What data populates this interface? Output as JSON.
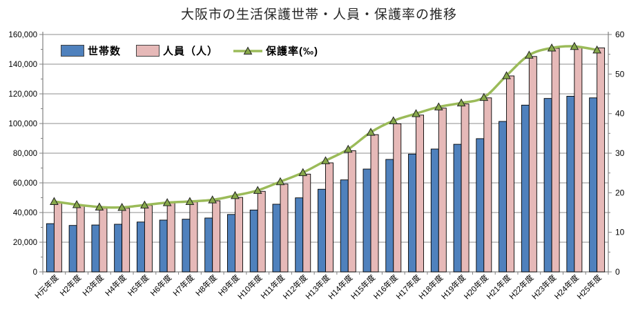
{
  "chart_data": {
    "type": "bar",
    "title": "大阪市の生活保護世帯・人員・保護率の推移",
    "xlabel": "",
    "ylabel_left": "",
    "ylabel_right": "",
    "grid": true,
    "legend_position": "top-left-inside",
    "categories": [
      "H元年度",
      "H2年度",
      "H3年度",
      "H4年度",
      "H5年度",
      "H6年度",
      "H7年度",
      "H8年度",
      "H9年度",
      "H10年度",
      "H11年度",
      "H12年度",
      "H13年度",
      "H14年度",
      "H15年度",
      "H16年度",
      "H17年度",
      "H18年度",
      "H19年度",
      "H20年度",
      "H21年度",
      "H22年度",
      "H23年度",
      "H24年度",
      "H25年度"
    ],
    "series": [
      {
        "name": "世帯数",
        "type": "bar",
        "axis": "left",
        "color": "#4F81BD",
        "values": [
          32500,
          31300,
          31600,
          32100,
          33600,
          34900,
          35500,
          36300,
          38700,
          41700,
          45600,
          49900,
          55700,
          62000,
          69300,
          75800,
          79400,
          82800,
          86000,
          89800,
          101400,
          112400,
          116900,
          118400,
          117300
        ]
      },
      {
        "name": "人員（人）",
        "type": "bar",
        "axis": "left",
        "color": "#E6B9B8",
        "values": [
          46400,
          44500,
          42900,
          42900,
          44800,
          46500,
          47100,
          47900,
          50200,
          54300,
          59200,
          65900,
          73500,
          81700,
          92500,
          99800,
          105700,
          110400,
          113200,
          117300,
          132100,
          145200,
          150700,
          151400,
          151000
        ]
      },
      {
        "name": "保護率(‰)",
        "type": "line",
        "axis": "right",
        "color": "#9BBB59",
        "marker": "triangle",
        "marker_color": "#87A84B",
        "values": [
          17.8,
          17.0,
          16.4,
          16.3,
          16.9,
          17.5,
          17.8,
          18.2,
          19.3,
          20.6,
          22.8,
          25.1,
          28.1,
          31.0,
          35.3,
          38.2,
          40.0,
          41.7,
          42.7,
          44.1,
          49.6,
          54.8,
          56.6,
          57.0,
          56.1
        ]
      }
    ],
    "left_axis": {
      "min": 0,
      "max": 160000,
      "tick_step": 20000,
      "minor_tick_step": 10000,
      "tick_labels": [
        "0",
        "20,000",
        "40,000",
        "60,000",
        "80,000",
        "100,000",
        "120,000",
        "140,000",
        "160,000"
      ]
    },
    "right_axis": {
      "min": 0,
      "max": 60,
      "tick_step": 10,
      "minor_tick_step": 5,
      "tick_labels": [
        "0",
        "10",
        "20",
        "30",
        "40",
        "50",
        "60"
      ]
    },
    "colors": {
      "gridline": "#8C8C8C",
      "axis": "#808080",
      "bar_border": "#000000"
    }
  }
}
